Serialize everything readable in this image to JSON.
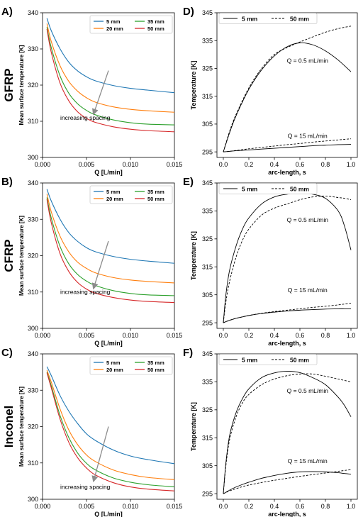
{
  "chart_data": [
    {
      "panel": "A)",
      "row_label": "GFRP",
      "type": "line",
      "xlabel": "Q [L/min]",
      "ylabel": "Mean surface temperature [K]",
      "xlim": [
        0,
        0.015
      ],
      "ylim": [
        300,
        340
      ],
      "xticks": [
        0.0,
        0.005,
        0.01,
        0.015
      ],
      "xtick_labels": [
        "0.000",
        "0.005",
        "0.010",
        "0.015"
      ],
      "yticks": [
        300,
        310,
        320,
        330,
        340
      ],
      "legend": {
        "placement": "top-right",
        "columns": 2
      },
      "annotation": {
        "text": "increasing spacing",
        "arrow_from": [
          0.0075,
          324
        ],
        "arrow_to": [
          0.0058,
          312
        ]
      },
      "x": [
        0.0005,
        0.001,
        0.002,
        0.003,
        0.004,
        0.005,
        0.006,
        0.008,
        0.01,
        0.012,
        0.015
      ],
      "series": [
        {
          "name": "5 mm",
          "color": "#1f77b4",
          "values": [
            338.5,
            335.0,
            330.0,
            326.3,
            323.9,
            322.3,
            321.2,
            319.9,
            319.1,
            318.6,
            317.9
          ]
        },
        {
          "name": "20 mm",
          "color": "#ff7f0e",
          "values": [
            337.0,
            332.0,
            325.3,
            321.0,
            318.3,
            316.5,
            315.3,
            314.0,
            313.3,
            312.9,
            312.5
          ]
        },
        {
          "name": "35 mm",
          "color": "#2ca02c",
          "values": [
            336.0,
            330.3,
            322.5,
            317.7,
            314.8,
            313.0,
            311.8,
            310.4,
            309.6,
            309.2,
            309.0
          ]
        },
        {
          "name": "50 mm",
          "color": "#d62728",
          "values": [
            335.5,
            329.0,
            320.5,
            315.6,
            312.6,
            310.8,
            309.7,
            308.5,
            307.8,
            307.4,
            307.1
          ]
        }
      ]
    },
    {
      "panel": "B)",
      "row_label": "CFRP",
      "type": "line",
      "xlabel": "Q [L/min]",
      "ylabel": "Mean surface temperature [K]",
      "xlim": [
        0,
        0.015
      ],
      "ylim": [
        300,
        340
      ],
      "xticks": [
        0.0,
        0.005,
        0.01,
        0.015
      ],
      "xtick_labels": [
        "0.000",
        "0.005",
        "0.010",
        "0.015"
      ],
      "yticks": [
        300,
        310,
        320,
        330,
        340
      ],
      "legend": {
        "placement": "top-right",
        "columns": 2
      },
      "annotation": {
        "text": "increasing spacing",
        "arrow_from": [
          0.0075,
          324
        ],
        "arrow_to": [
          0.0058,
          311
        ]
      },
      "x": [
        0.0005,
        0.001,
        0.002,
        0.003,
        0.004,
        0.005,
        0.006,
        0.008,
        0.01,
        0.012,
        0.015
      ],
      "series": [
        {
          "name": "5 mm",
          "color": "#1f77b4",
          "values": [
            338.3,
            335.0,
            330.0,
            326.3,
            323.9,
            322.2,
            321.1,
            319.8,
            319.0,
            318.5,
            317.9
          ]
        },
        {
          "name": "20 mm",
          "color": "#ff7f0e",
          "values": [
            337.0,
            332.0,
            325.3,
            321.0,
            318.2,
            316.5,
            315.3,
            314.0,
            313.3,
            312.9,
            312.5
          ]
        },
        {
          "name": "35 mm",
          "color": "#2ca02c",
          "values": [
            336.0,
            330.3,
            322.5,
            317.7,
            314.8,
            313.0,
            311.8,
            310.4,
            309.6,
            309.2,
            309.0
          ]
        },
        {
          "name": "50 mm",
          "color": "#d62728",
          "values": [
            335.5,
            329.0,
            320.5,
            315.6,
            312.6,
            310.8,
            309.7,
            308.5,
            307.8,
            307.4,
            307.1
          ]
        }
      ]
    },
    {
      "panel": "C)",
      "row_label": "Inconel",
      "type": "line",
      "xlabel": "Q [L/min]",
      "ylabel": "Mean surface temperature [K]",
      "xlim": [
        0,
        0.015
      ],
      "ylim": [
        300,
        340
      ],
      "xticks": [
        0.0,
        0.005,
        0.01,
        0.015
      ],
      "xtick_labels": [
        "0.000",
        "0.005",
        "0.010",
        "0.015"
      ],
      "yticks": [
        300,
        310,
        320,
        330,
        340
      ],
      "legend": {
        "placement": "top-right",
        "columns": 2
      },
      "annotation": {
        "text": "increasing spacing",
        "arrow_from": [
          0.0075,
          320
        ],
        "arrow_to": [
          0.0058,
          305
        ]
      },
      "x": [
        0.0005,
        0.001,
        0.002,
        0.003,
        0.004,
        0.005,
        0.006,
        0.008,
        0.01,
        0.012,
        0.015
      ],
      "series": [
        {
          "name": "5 mm",
          "color": "#1f77b4",
          "values": [
            336.5,
            334.0,
            328.5,
            324.2,
            320.8,
            318.0,
            316.2,
            313.6,
            311.9,
            310.9,
            309.8
          ]
        },
        {
          "name": "20 mm",
          "color": "#ff7f0e",
          "values": [
            335.5,
            332.2,
            324.8,
            319.0,
            315.0,
            312.2,
            310.4,
            308.1,
            306.8,
            306.0,
            305.4
          ]
        },
        {
          "name": "35 mm",
          "color": "#2ca02c",
          "values": [
            335.0,
            331.2,
            323.0,
            316.9,
            312.7,
            309.9,
            308.1,
            305.9,
            304.7,
            304.0,
            303.4
          ]
        },
        {
          "name": "50 mm",
          "color": "#d62728",
          "values": [
            334.8,
            330.6,
            322.0,
            315.6,
            311.4,
            308.6,
            306.7,
            304.6,
            303.4,
            302.8,
            302.3
          ]
        }
      ]
    },
    {
      "panel": "D)",
      "type": "line",
      "xlabel": "arc-length, s",
      "ylabel": "Temperature [K]",
      "xlim": [
        -0.05,
        1.05
      ],
      "ylim": [
        293,
        345
      ],
      "xticks": [
        0.0,
        0.2,
        0.4,
        0.6,
        0.8,
        1.0
      ],
      "xtick_labels": [
        "0.0",
        "0.2",
        "0.4",
        "0.6",
        "0.8",
        "1.0"
      ],
      "yticks": [
        295,
        305,
        315,
        325,
        335,
        345
      ],
      "legend": {
        "placement": "top",
        "columns": 2
      },
      "annotations": [
        {
          "text": "Q = 0.5 mL/min",
          "x": 0.66,
          "y": 327
        },
        {
          "text": "Q = 15 mL/min",
          "x": 0.66,
          "y": 300
        }
      ],
      "x": [
        0.0,
        0.05,
        0.1,
        0.2,
        0.3,
        0.4,
        0.5,
        0.6,
        0.7,
        0.8,
        0.9,
        1.0
      ],
      "series": [
        {
          "name": "5 mm",
          "style": "solid",
          "group": "Q = 0.5 mL/min",
          "values": [
            295.0,
            302.0,
            308.0,
            317.5,
            324.5,
            329.5,
            332.8,
            334.2,
            333.5,
            331.3,
            328.0,
            323.8
          ]
        },
        {
          "name": "50 mm",
          "style": "dashed",
          "group": "Q = 0.5 mL/min",
          "values": [
            295.0,
            302.5,
            308.5,
            318.0,
            325.0,
            330.0,
            332.5,
            334.5,
            336.3,
            338.0,
            339.3,
            340.2
          ]
        },
        {
          "name": "5 mm",
          "style": "solid",
          "group": "Q = 15 mL/min",
          "values": [
            295.0,
            295.2,
            295.4,
            295.7,
            296.0,
            296.3,
            296.6,
            296.9,
            297.2,
            297.4,
            297.6,
            297.7
          ]
        },
        {
          "name": "50 mm",
          "style": "dashed",
          "group": "Q = 15 mL/min",
          "values": [
            295.0,
            295.2,
            295.5,
            296.1,
            296.6,
            297.1,
            297.6,
            298.0,
            298.5,
            298.9,
            299.3,
            299.7
          ]
        }
      ]
    },
    {
      "panel": "E)",
      "type": "line",
      "xlabel": "arc-length, s",
      "ylabel": "Temperature [K]",
      "xlim": [
        -0.05,
        1.05
      ],
      "ylim": [
        293,
        345
      ],
      "xticks": [
        0.0,
        0.2,
        0.4,
        0.6,
        0.8,
        1.0
      ],
      "xtick_labels": [
        "0.0",
        "0.2",
        "0.4",
        "0.6",
        "0.8",
        "1.0"
      ],
      "yticks": [
        295,
        305,
        315,
        325,
        335,
        345
      ],
      "legend": {
        "placement": "top",
        "columns": 2
      },
      "annotations": [
        {
          "text": "Q = 0.5 mL/min",
          "x": 0.66,
          "y": 331
        },
        {
          "text": "Q = 15 mL/min",
          "x": 0.66,
          "y": 306
        }
      ],
      "x": [
        0.0,
        0.02,
        0.05,
        0.1,
        0.15,
        0.2,
        0.3,
        0.4,
        0.5,
        0.6,
        0.7,
        0.8,
        0.9,
        0.95,
        1.0
      ],
      "series": [
        {
          "name": "5 mm",
          "style": "solid",
          "group": "Q = 0.5 mL/min",
          "values": [
            295.0,
            305.0,
            314.0,
            322.5,
            328.5,
            332.5,
            337.5,
            340.0,
            341.0,
            341.5,
            341.0,
            339.5,
            335.0,
            329.5,
            321.0
          ]
        },
        {
          "name": "50 mm",
          "style": "dashed",
          "group": "Q = 0.5 mL/min",
          "values": [
            295.0,
            302.5,
            310.0,
            318.5,
            324.5,
            328.5,
            333.5,
            336.0,
            337.5,
            339.0,
            340.0,
            340.3,
            339.8,
            339.5,
            339.0
          ]
        },
        {
          "name": "5 mm",
          "style": "solid",
          "group": "Q = 15 mL/min",
          "values": [
            295.0,
            295.4,
            295.9,
            296.6,
            297.1,
            297.6,
            298.3,
            298.8,
            299.2,
            299.5,
            299.7,
            299.9,
            300.0,
            300.0,
            300.0
          ]
        },
        {
          "name": "50 mm",
          "style": "dashed",
          "group": "Q = 15 mL/min",
          "values": [
            295.0,
            295.4,
            295.9,
            296.6,
            297.1,
            297.6,
            298.4,
            299.0,
            299.5,
            300.0,
            300.5,
            300.9,
            301.4,
            301.7,
            302.0
          ]
        }
      ]
    },
    {
      "panel": "F)",
      "type": "line",
      "xlabel": "arc-length, s",
      "ylabel": "Temperature [K]",
      "xlim": [
        -0.05,
        1.05
      ],
      "ylim": [
        293,
        345
      ],
      "xticks": [
        0.0,
        0.2,
        0.4,
        0.6,
        0.8,
        1.0
      ],
      "xtick_labels": [
        "0.0",
        "0.2",
        "0.4",
        "0.6",
        "0.8",
        "1.0"
      ],
      "yticks": [
        295,
        305,
        315,
        325,
        335,
        345
      ],
      "legend": {
        "placement": "top",
        "columns": 2
      },
      "annotations": [
        {
          "text": "Q = 0.5 mL/min",
          "x": 0.66,
          "y": 331
        },
        {
          "text": "Q = 15 mL/min",
          "x": 0.66,
          "y": 306
        }
      ],
      "x": [
        0.0,
        0.02,
        0.05,
        0.1,
        0.15,
        0.2,
        0.3,
        0.4,
        0.5,
        0.6,
        0.7,
        0.8,
        0.9,
        0.95,
        1.0
      ],
      "series": [
        {
          "name": "5 mm",
          "style": "solid",
          "group": "Q = 0.5 mL/min",
          "values": [
            295.0,
            306.0,
            316.0,
            324.0,
            329.0,
            332.5,
            336.5,
            338.2,
            338.8,
            338.3,
            336.5,
            334.0,
            329.5,
            326.5,
            322.5
          ]
        },
        {
          "name": "50 mm",
          "style": "dashed",
          "group": "Q = 0.5 mL/min",
          "values": [
            295.0,
            305.0,
            314.5,
            322.5,
            327.5,
            330.5,
            334.0,
            336.0,
            337.2,
            337.8,
            337.8,
            337.0,
            336.0,
            335.5,
            335.0
          ]
        },
        {
          "name": "5 mm",
          "style": "solid",
          "group": "Q = 15 mL/min",
          "values": [
            295.0,
            295.5,
            296.3,
            297.4,
            298.3,
            299.1,
            300.5,
            301.5,
            302.3,
            302.8,
            302.9,
            302.8,
            302.5,
            302.2,
            302.0
          ]
        },
        {
          "name": "50 mm",
          "style": "dashed",
          "group": "Q = 15 mL/min",
          "values": [
            295.0,
            295.4,
            296.0,
            296.8,
            297.5,
            298.1,
            299.0,
            299.8,
            300.5,
            301.2,
            301.8,
            302.4,
            303.0,
            303.3,
            303.6
          ]
        }
      ]
    }
  ]
}
